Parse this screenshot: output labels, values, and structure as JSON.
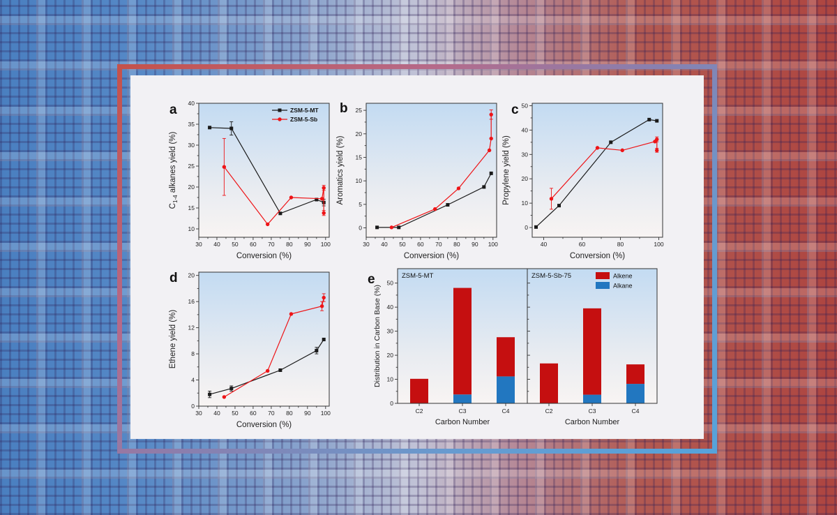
{
  "background": {
    "gradient_left": "#4a7fc0",
    "gradient_right": "#ae4540",
    "frame_gradient_start": "#c5524b",
    "frame_gradient_end": "#57a3da",
    "panel_color": "#f2f1f4"
  },
  "chart_data": [
    {
      "id": "a",
      "panel_label": "a",
      "type": "line",
      "xlabel": "Conversion (%)",
      "ylabel_parts": [
        {
          "text": "C"
        },
        {
          "text": "1-4",
          "sub": true
        },
        {
          "text": " alkanes yield (%)"
        }
      ],
      "xlim": [
        30,
        102
      ],
      "ylim": [
        8,
        40
      ],
      "xticks": [
        30,
        40,
        50,
        60,
        70,
        80,
        90,
        100
      ],
      "yticks": [
        10,
        15,
        20,
        25,
        30,
        35,
        40
      ],
      "legend": true,
      "series": [
        {
          "name": "ZSM-5-MT",
          "color": "#1a1a1a",
          "marker": "square",
          "points": [
            [
              36,
              34.2
            ],
            [
              48,
              34.0,
              1.6
            ],
            [
              75,
              13.7
            ],
            [
              95,
              17.0
            ],
            [
              99,
              16.3,
              0.8
            ]
          ]
        },
        {
          "name": "ZSM-5-Sb",
          "color": "#ee1417",
          "marker": "circle",
          "points": [
            [
              44,
              24.8,
              6.8
            ],
            [
              68,
              11.1
            ],
            [
              81,
              17.5
            ],
            [
              98,
              17.2
            ],
            [
              99,
              19.8,
              0.6
            ],
            [
              99,
              13.8,
              0.6
            ]
          ]
        }
      ]
    },
    {
      "id": "b",
      "panel_label": "b",
      "type": "line",
      "xlabel": "Conversion (%)",
      "ylabel_parts": [
        {
          "text": "Aromatics yield (%)"
        }
      ],
      "xlim": [
        30,
        102
      ],
      "ylim": [
        -2,
        26.5
      ],
      "xticks": [
        30,
        40,
        50,
        60,
        70,
        80,
        90,
        100
      ],
      "yticks": [
        0,
        5,
        10,
        15,
        20,
        25
      ],
      "legend": false,
      "series": [
        {
          "name": "ZSM-5-MT",
          "color": "#1a1a1a",
          "marker": "square",
          "points": [
            [
              36,
              0.1
            ],
            [
              48,
              0.1
            ],
            [
              75,
              4.9
            ],
            [
              95,
              8.7
            ],
            [
              99,
              11.6
            ]
          ]
        },
        {
          "name": "ZSM-5-Sb",
          "color": "#ee1417",
          "marker": "circle",
          "points": [
            [
              44,
              0.1
            ],
            [
              68,
              4.0
            ],
            [
              81,
              8.4
            ],
            [
              98,
              16.5
            ],
            [
              99,
              19.0
            ],
            [
              99,
              24.1,
              1.0
            ]
          ]
        }
      ]
    },
    {
      "id": "c",
      "panel_label": "c",
      "type": "line",
      "xlabel": "Conversion (%)",
      "ylabel_parts": [
        {
          "text": "Propylene yield (%)"
        }
      ],
      "xlim": [
        34,
        102
      ],
      "ylim": [
        -4,
        51
      ],
      "xticks": [
        40,
        60,
        80,
        100
      ],
      "yticks": [
        0,
        10,
        20,
        30,
        40,
        50
      ],
      "legend": false,
      "series": [
        {
          "name": "ZSM-5-MT",
          "color": "#1a1a1a",
          "marker": "square",
          "points": [
            [
              36,
              0.2
            ],
            [
              48,
              9.0
            ],
            [
              75,
              35.0
            ],
            [
              95,
              44.3
            ],
            [
              99,
              43.8
            ]
          ]
        },
        {
          "name": "ZSM-5-Sb",
          "color": "#ee1417",
          "marker": "circle",
          "points": [
            [
              44,
              11.8,
              4.3
            ],
            [
              68,
              32.7
            ],
            [
              81,
              31.7
            ],
            [
              98,
              35.3
            ],
            [
              99,
              36.2,
              1.0
            ],
            [
              99,
              31.7,
              0.8
            ]
          ]
        }
      ]
    },
    {
      "id": "d",
      "panel_label": "d",
      "type": "line",
      "xlabel": "Conversion (%)",
      "ylabel_parts": [
        {
          "text": "Ethene yield (%)"
        }
      ],
      "xlim": [
        30,
        102
      ],
      "ylim": [
        0,
        20.5
      ],
      "xticks": [
        30,
        40,
        50,
        60,
        70,
        80,
        90,
        100
      ],
      "yticks": [
        0,
        4,
        8,
        12,
        16,
        20
      ],
      "legend": false,
      "series": [
        {
          "name": "ZSM-5-MT",
          "color": "#1a1a1a",
          "marker": "square",
          "points": [
            [
              36,
              1.8,
              0.5
            ],
            [
              48,
              2.7,
              0.4
            ],
            [
              75,
              5.5
            ],
            [
              95,
              8.5,
              0.5
            ],
            [
              99,
              10.2
            ]
          ]
        },
        {
          "name": "ZSM-5-Sb",
          "color": "#ee1417",
          "marker": "circle",
          "points": [
            [
              44,
              1.4
            ],
            [
              68,
              5.4
            ],
            [
              81,
              14.1
            ],
            [
              98,
              15.3,
              0.7
            ],
            [
              99,
              16.6,
              0.6
            ]
          ]
        }
      ]
    },
    {
      "id": "e",
      "panel_label": "e",
      "type": "stacked-bar",
      "xlabel": "Carbon Number",
      "ylabel": "Distribution in Carbon Base (%)",
      "ylim": [
        0,
        56
      ],
      "yticks": [
        0,
        10,
        20,
        30,
        40,
        50
      ],
      "categories": [
        "C2",
        "C3",
        "C4"
      ],
      "panels": [
        {
          "title": "ZSM-5-MT",
          "alkane": [
            0,
            3.7,
            11.2
          ],
          "alkene": [
            10.2,
            44.3,
            16.3
          ]
        },
        {
          "title": "ZSM-5-Sb-75",
          "alkane": [
            0,
            3.6,
            8.1
          ],
          "alkene": [
            16.6,
            35.9,
            8.1
          ]
        }
      ],
      "legend": [
        {
          "label": "Alkene",
          "color": "#c50f10"
        },
        {
          "label": "Alkane",
          "color": "#2277c0"
        }
      ]
    }
  ]
}
